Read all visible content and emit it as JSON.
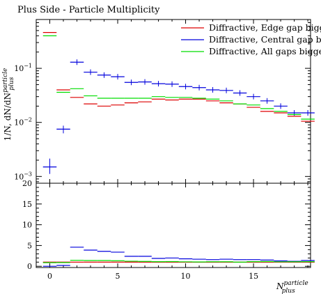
{
  "chart_data": {
    "type": "line",
    "title": "Plus Side - Particle Multiplicity",
    "xlabel": {
      "main": "N",
      "sup": "particle",
      "sub": "plus"
    },
    "ylabel": "1/N, dN/dN",
    "ylabel_sup": "particle",
    "ylabel_sub": "plus",
    "x_range": [
      -1,
      19.2
    ],
    "y_scale": "log",
    "y_range": [
      0.00075,
      0.8
    ],
    "y_ticks": [
      {
        "base": "10",
        "exp": "−3"
      },
      {
        "base": "10",
        "exp": "−2"
      },
      {
        "base": "10",
        "exp": "−1"
      }
    ],
    "ratio_y_range": [
      -0.3,
      20
    ],
    "ratio_y_ticks": [
      "0",
      "5",
      "10",
      "15",
      "20"
    ],
    "x_ticks": [
      "0",
      "5",
      "10",
      "15"
    ],
    "x": [
      0,
      1,
      2,
      3,
      4,
      5,
      6,
      7,
      8,
      9,
      10,
      11,
      12,
      13,
      14,
      15,
      16,
      17,
      18,
      19
    ],
    "series": [
      {
        "name": "Diffractive, Edge gap bigg",
        "color": "#dd0000",
        "values": [
          0.46,
          0.04,
          0.029,
          0.022,
          0.02,
          0.021,
          0.023,
          0.024,
          0.027,
          0.026,
          0.027,
          0.027,
          0.025,
          0.023,
          0.022,
          0.019,
          0.016,
          0.015,
          0.013,
          0.0105
        ],
        "ratio": [
          1.0,
          1.0,
          1.0,
          1.0,
          1.0,
          1.0,
          1.0,
          1.0,
          1.0,
          1.0,
          1.0,
          1.0,
          1.0,
          1.0,
          1.0,
          1.0,
          1.0,
          1.0,
          1.0,
          1.0
        ]
      },
      {
        "name": "Diffractive, Central gap bi",
        "color": "#0000dd",
        "values": [
          0.0015,
          0.0075,
          0.13,
          0.085,
          0.075,
          0.07,
          0.055,
          0.056,
          0.052,
          0.051,
          0.046,
          0.044,
          0.04,
          0.039,
          0.035,
          0.03,
          0.025,
          0.02,
          0.015,
          0.015
        ],
        "ratio": [
          0.003,
          0.2,
          4.6,
          3.9,
          3.6,
          3.4,
          2.4,
          2.4,
          1.9,
          2.0,
          1.8,
          1.7,
          1.6,
          1.7,
          1.6,
          1.6,
          1.5,
          1.3,
          1.2,
          1.4
        ]
      },
      {
        "name": "Diffractive, All gaps bigge",
        "color": "#00dd00",
        "values": [
          0.4,
          0.036,
          0.042,
          0.031,
          0.028,
          0.028,
          0.028,
          0.028,
          0.03,
          0.029,
          0.029,
          0.028,
          0.027,
          0.025,
          0.022,
          0.021,
          0.018,
          0.016,
          0.014,
          0.0115
        ],
        "ratio": [
          0.87,
          0.9,
          1.45,
          1.4,
          1.4,
          1.33,
          1.22,
          1.17,
          1.11,
          1.12,
          1.07,
          1.04,
          1.08,
          1.09,
          1.0,
          1.1,
          1.12,
          1.07,
          1.08,
          1.1
        ]
      }
    ]
  }
}
